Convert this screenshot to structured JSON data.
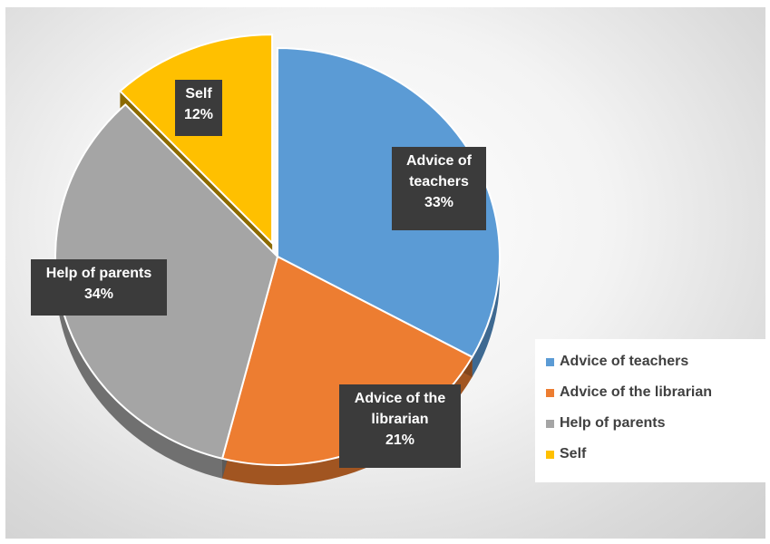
{
  "chart_data": {
    "type": "pie",
    "title": "",
    "categories": [
      "Advice of teachers",
      "Advice of the librarian",
      "Help of parents",
      "Self"
    ],
    "values": [
      33,
      21,
      34,
      12
    ],
    "unit": "%",
    "exploded": [
      "Self"
    ],
    "three_d": true,
    "legend_position": "right-bottom",
    "data_labels": [
      {
        "lines": [
          "Advice of",
          "teachers",
          "33%"
        ]
      },
      {
        "lines": [
          "Advice of the",
          "librarian",
          "21%"
        ]
      },
      {
        "lines": [
          "Help of parents",
          "34%"
        ]
      },
      {
        "lines": [
          "Self",
          "12%"
        ]
      }
    ],
    "colors": {
      "Advice of teachers": "#5b9bd5",
      "Advice of the librarian": "#ed7d31",
      "Help of parents": "#a5a5a5",
      "Self": "#ffc000"
    }
  }
}
